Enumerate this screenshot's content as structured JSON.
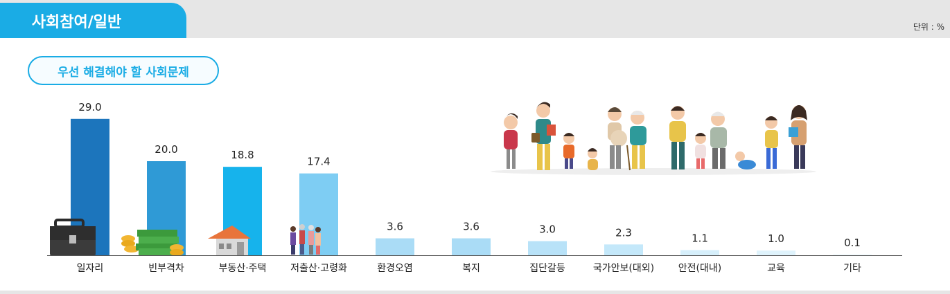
{
  "header": {
    "tab_title": "사회참여/일반",
    "unit_label": "단위 : %"
  },
  "chart_data": {
    "type": "bar",
    "title": "우선 해결해야 할 사회문제",
    "categories": [
      "일자리",
      "빈부격차",
      "부동산·주택",
      "저출산·고령화",
      "환경오염",
      "복지",
      "집단갈등",
      "국가안보(대외)",
      "안전(대내)",
      "교육",
      "기타"
    ],
    "values": [
      29.0,
      20.0,
      18.8,
      17.4,
      3.6,
      3.6,
      3.0,
      2.3,
      1.1,
      1.0,
      0.1
    ],
    "value_labels": [
      "29.0",
      "20.0",
      "18.8",
      "17.4",
      "3.6",
      "3.6",
      "3.0",
      "2.3",
      "1.1",
      "1.0",
      "0.1"
    ],
    "bar_colors": [
      "#1c75bc",
      "#2f9ad6",
      "#16b3ec",
      "#7ecdf3",
      "#aadcf6",
      "#aadcf6",
      "#b8e2f8",
      "#c4e8fa",
      "#d6effb",
      "#dff3fc",
      "#e8f7fd"
    ],
    "icons": [
      "briefcase-icon",
      "money-stack-icon",
      "house-icon",
      "elderly-family-icon"
    ],
    "ylim": [
      0,
      30
    ],
    "grid": false,
    "legend": "none"
  },
  "illustration": {
    "icon": "family-generations-illustration"
  }
}
